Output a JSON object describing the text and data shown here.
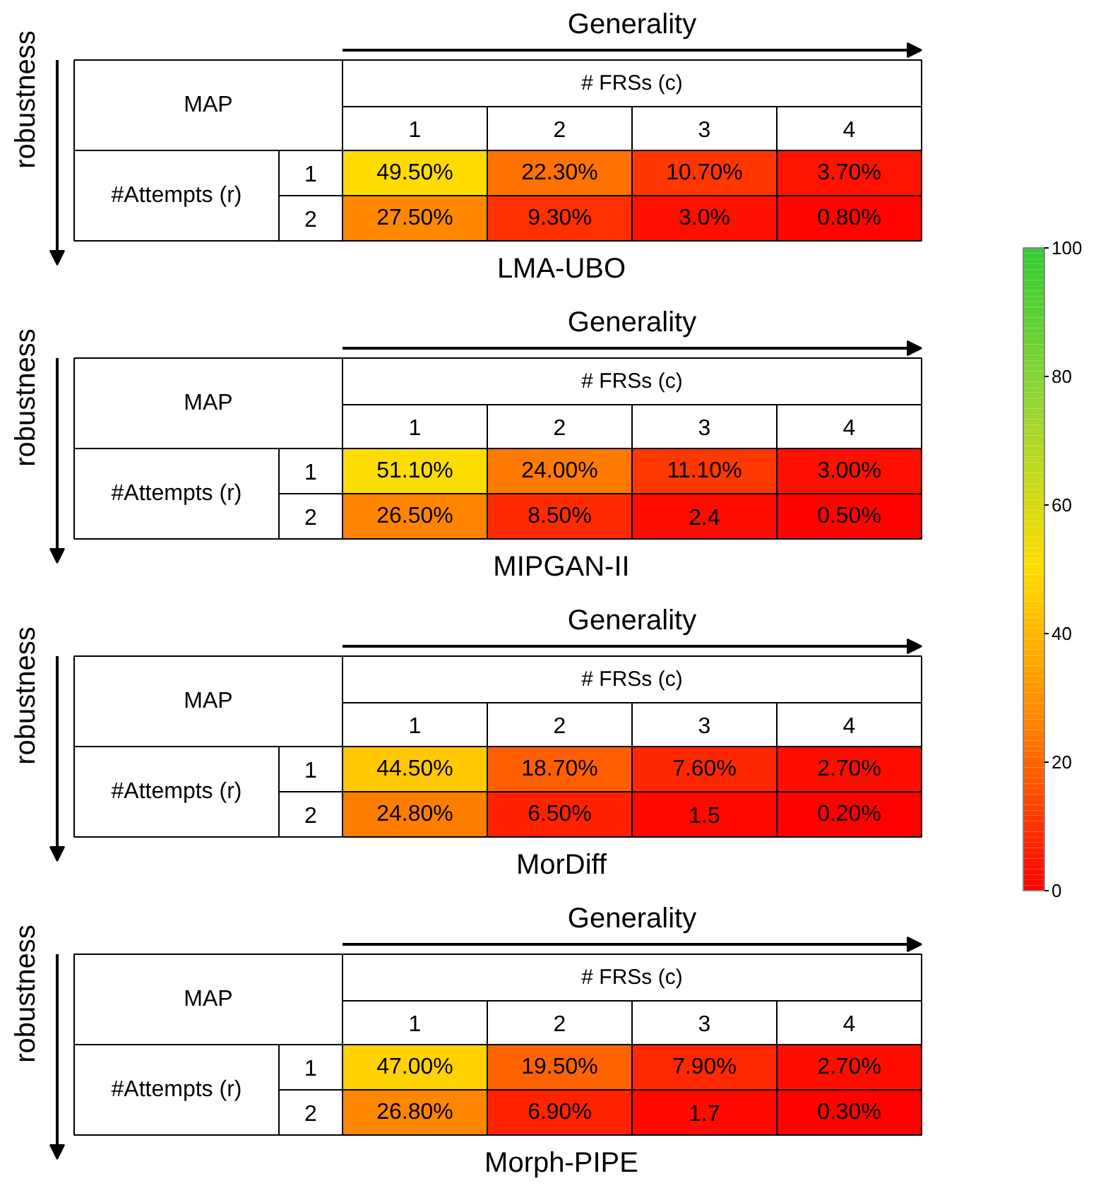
{
  "chart_data": [
    {
      "type": "heatmap",
      "title": "LMA-UBO",
      "xlabel": "# FRSs (c)",
      "ylabel": "#Attempts (r)",
      "annotations": [
        "MAP",
        "Generality",
        "robustness"
      ],
      "categories": [
        "1",
        "2",
        "3",
        "4"
      ],
      "y_categories": [
        "1",
        "2"
      ],
      "cells": [
        [
          49.5,
          22.3,
          10.7,
          3.7
        ],
        [
          27.5,
          9.3,
          3.0,
          0.8
        ]
      ],
      "cell_labels": [
        [
          "49.50%",
          "22.30%",
          "10.70%",
          "3.70%"
        ],
        [
          "27.50%",
          "9.30%",
          "3.0%",
          "0.80%"
        ]
      ],
      "clim": [
        0,
        100
      ],
      "cticks": [
        0,
        20,
        40,
        60,
        80,
        100
      ]
    },
    {
      "type": "heatmap",
      "title": "MIPGAN-II",
      "xlabel": "# FRSs (c)",
      "ylabel": "#Attempts (r)",
      "annotations": [
        "MAP",
        "Generality",
        "robustness"
      ],
      "categories": [
        "1",
        "2",
        "3",
        "4"
      ],
      "y_categories": [
        "1",
        "2"
      ],
      "cells": [
        [
          51.1,
          24.0,
          11.1,
          3.0
        ],
        [
          26.5,
          8.5,
          2.4,
          0.5
        ]
      ],
      "cell_labels": [
        [
          "51.10%",
          "24.00%",
          "11.10%",
          "3.00%"
        ],
        [
          "26.50%",
          "8.50%",
          "2.4",
          "0.50%"
        ]
      ]
    },
    {
      "type": "heatmap",
      "title": "MorDiff",
      "xlabel": "# FRSs (c)",
      "ylabel": "#Attempts (r)",
      "annotations": [
        "MAP",
        "Generality",
        "robustness"
      ],
      "categories": [
        "1",
        "2",
        "3",
        "4"
      ],
      "y_categories": [
        "1",
        "2"
      ],
      "cells": [
        [
          44.5,
          18.7,
          7.6,
          2.7
        ],
        [
          24.8,
          6.5,
          1.5,
          0.2
        ]
      ],
      "cell_labels": [
        [
          "44.50%",
          "18.70%",
          "7.60%",
          "2.70%"
        ],
        [
          "24.80%",
          "6.50%",
          "1.5",
          "0.20%"
        ]
      ]
    },
    {
      "type": "heatmap",
      "title": "Morph-PIPE",
      "xlabel": "# FRSs (c)",
      "ylabel": "#Attempts (r)",
      "annotations": [
        "MAP",
        "Generality",
        "robustness"
      ],
      "categories": [
        "1",
        "2",
        "3",
        "4"
      ],
      "y_categories": [
        "1",
        "2"
      ],
      "cells": [
        [
          47.0,
          19.5,
          7.9,
          2.7
        ],
        [
          26.8,
          6.9,
          1.7,
          0.3
        ]
      ],
      "cell_labels": [
        [
          "47.00%",
          "19.50%",
          "7.90%",
          "2.70%"
        ],
        [
          "26.80%",
          "6.90%",
          "1.7",
          "0.30%"
        ]
      ]
    }
  ]
}
